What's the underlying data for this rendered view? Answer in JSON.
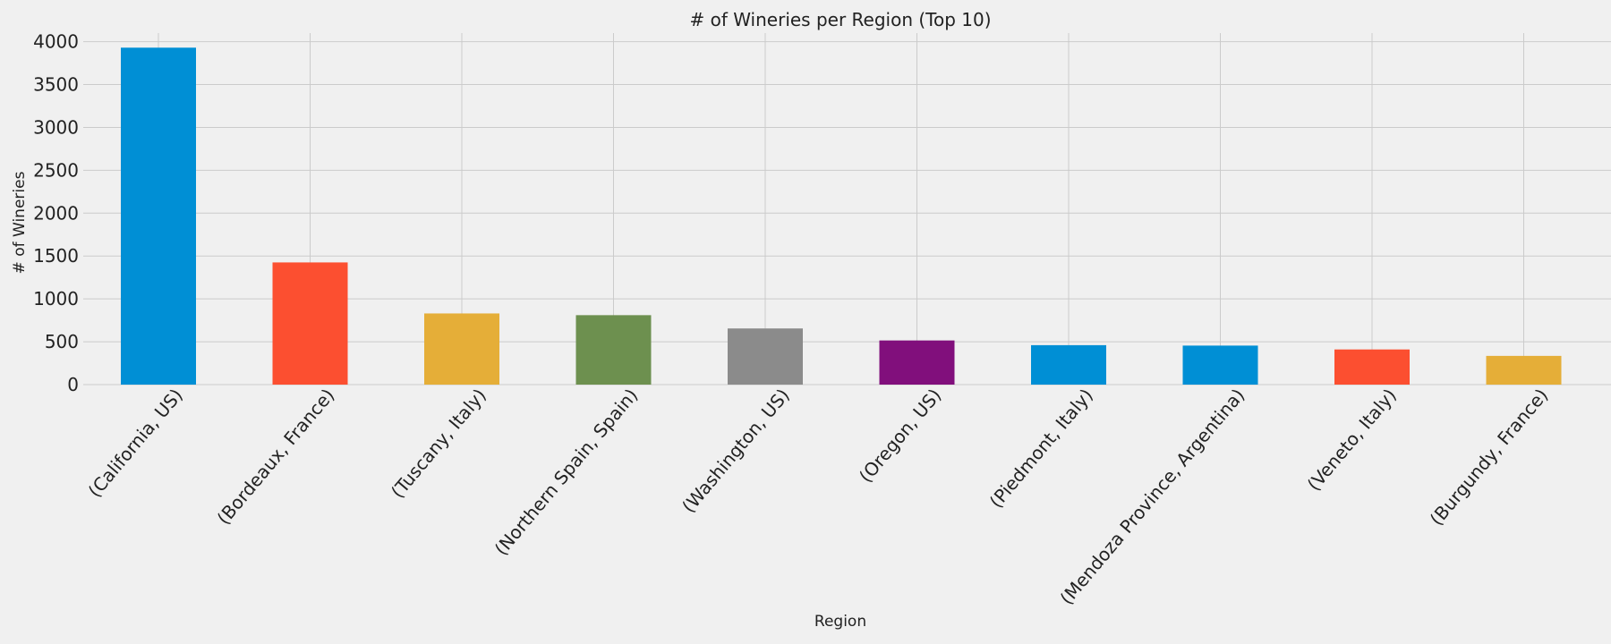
{
  "chart_data": {
    "type": "bar",
    "title": "# of Wineries per Region (Top 10)",
    "xlabel": "Region",
    "ylabel": "# of Wineries",
    "categories": [
      "(California, US)",
      "(Bordeaux, France)",
      "(Tuscany, Italy)",
      "(Northern Spain, Spain)",
      "(Washington, US)",
      "(Oregon, US)",
      "(Piedmont, Italy)",
      "(Mendoza Province, Argentina)",
      "(Veneto, Italy)",
      "(Burgundy, France)"
    ],
    "values": [
      3930,
      1425,
      830,
      810,
      655,
      515,
      460,
      455,
      410,
      335
    ],
    "colors": [
      "#008fd5",
      "#fc4f30",
      "#e5ae38",
      "#6d904f",
      "#8b8b8b",
      "#810f7c",
      "#008fd5",
      "#008fd5",
      "#fc4f30",
      "#e5ae38"
    ],
    "ylim": [
      0,
      4100
    ],
    "yticks": [
      0,
      500,
      1000,
      1500,
      2000,
      2500,
      3000,
      3500,
      4000
    ],
    "grid": true,
    "background": "#f0f0f0",
    "grid_color": "#cbcbcb"
  }
}
